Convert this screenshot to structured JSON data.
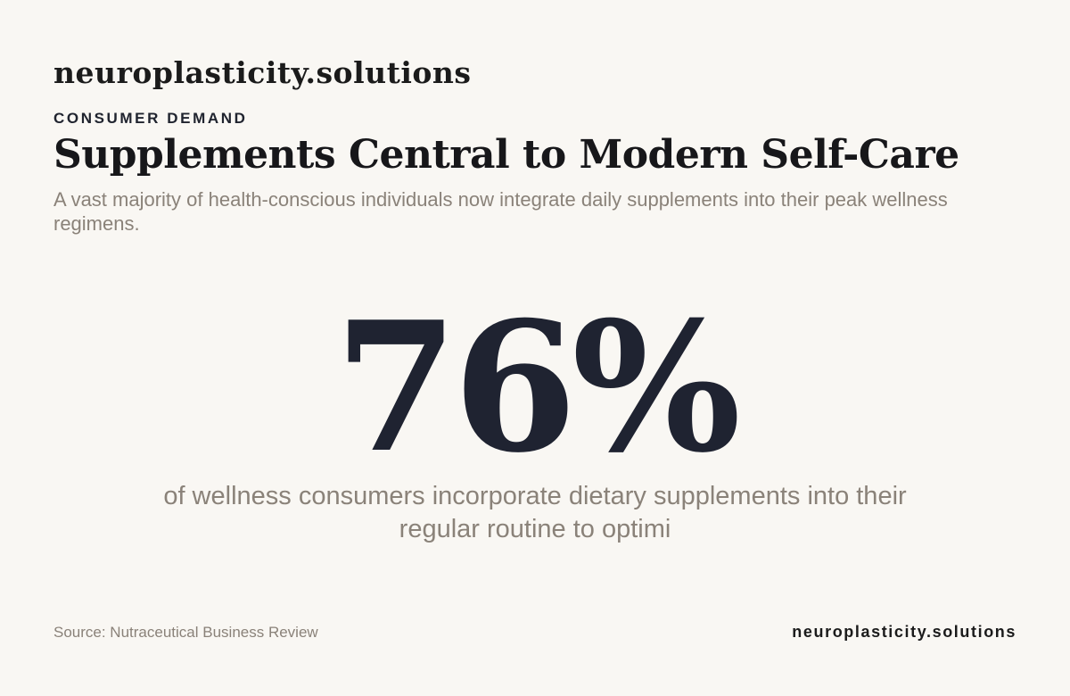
{
  "brand": {
    "top": "neuroplasticity.solutions",
    "bottom": "neuroplasticity.solutions"
  },
  "eyebrow": "CONSUMER DEMAND",
  "headline": "Supplements Central to Modern Self-Care",
  "subhead": "A vast majority of health-conscious individuals now integrate daily supplements into their peak wellness regimens.",
  "stat": {
    "value": "76%",
    "caption": "of wellness consumers incorporate dietary supplements into their regular routine to optimi"
  },
  "source": "Source: Nutraceutical Business Review",
  "colors": {
    "background": "#f9f7f3",
    "stat": "#1f2331",
    "muted_text": "#8a8279",
    "heading": "#17171a"
  }
}
